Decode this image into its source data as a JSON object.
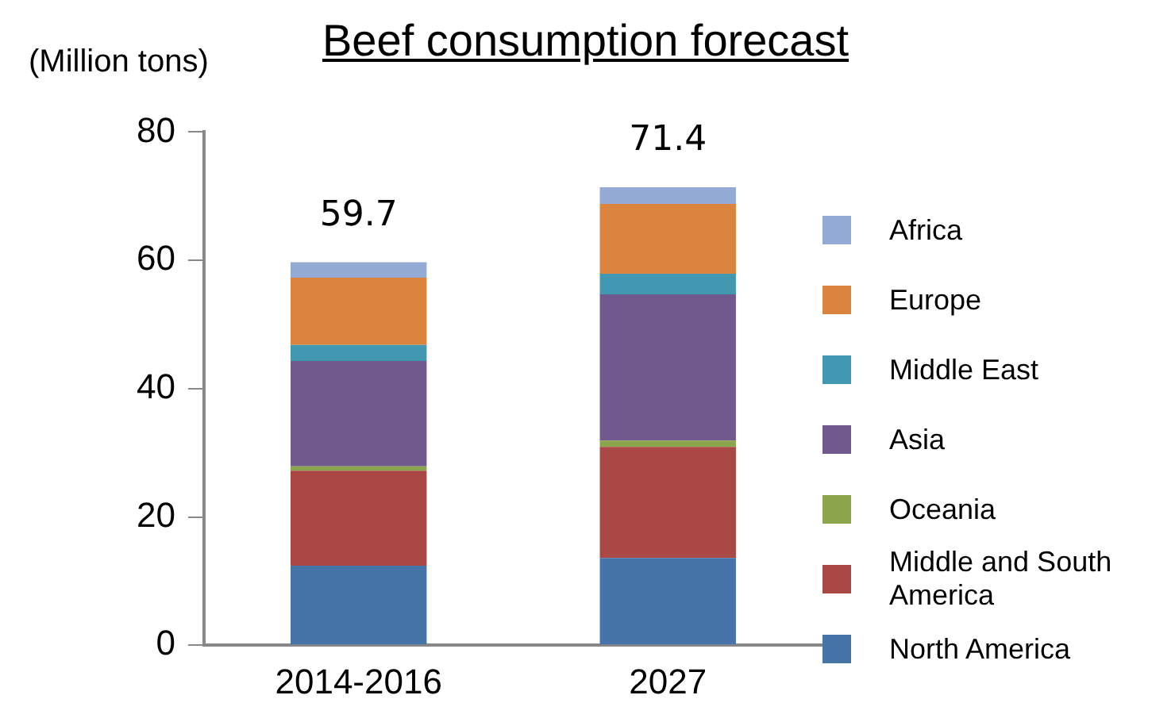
{
  "chart_data": {
    "type": "bar",
    "title": "Beef consumption forecast",
    "ylabel": "(Million tons)",
    "categories": [
      "2014-2016",
      "2027"
    ],
    "stacked": true,
    "ylim": [
      0,
      80
    ],
    "yticks": [
      0,
      20,
      40,
      60,
      80
    ],
    "grid": false,
    "legend": "right",
    "totals": [
      "59.7",
      "71.4"
    ],
    "series": [
      {
        "name": "North America",
        "color": "#4674a8",
        "values": [
          12.4,
          13.6
        ]
      },
      {
        "name": "Middle and South America",
        "color": "#aa4845",
        "values": [
          14.8,
          17.3
        ]
      },
      {
        "name": "Oceania",
        "color": "#8aa54c",
        "values": [
          0.7,
          1.0
        ]
      },
      {
        "name": "Asia",
        "color": "#72598d",
        "values": [
          16.4,
          22.8
        ]
      },
      {
        "name": "Middle East",
        "color": "#4298b0",
        "values": [
          2.5,
          3.2
        ]
      },
      {
        "name": "Europe",
        "color": "#db843e",
        "values": [
          10.5,
          10.9
        ]
      },
      {
        "name": "Africa",
        "color": "#93aad4",
        "values": [
          2.4,
          2.6
        ]
      }
    ]
  }
}
